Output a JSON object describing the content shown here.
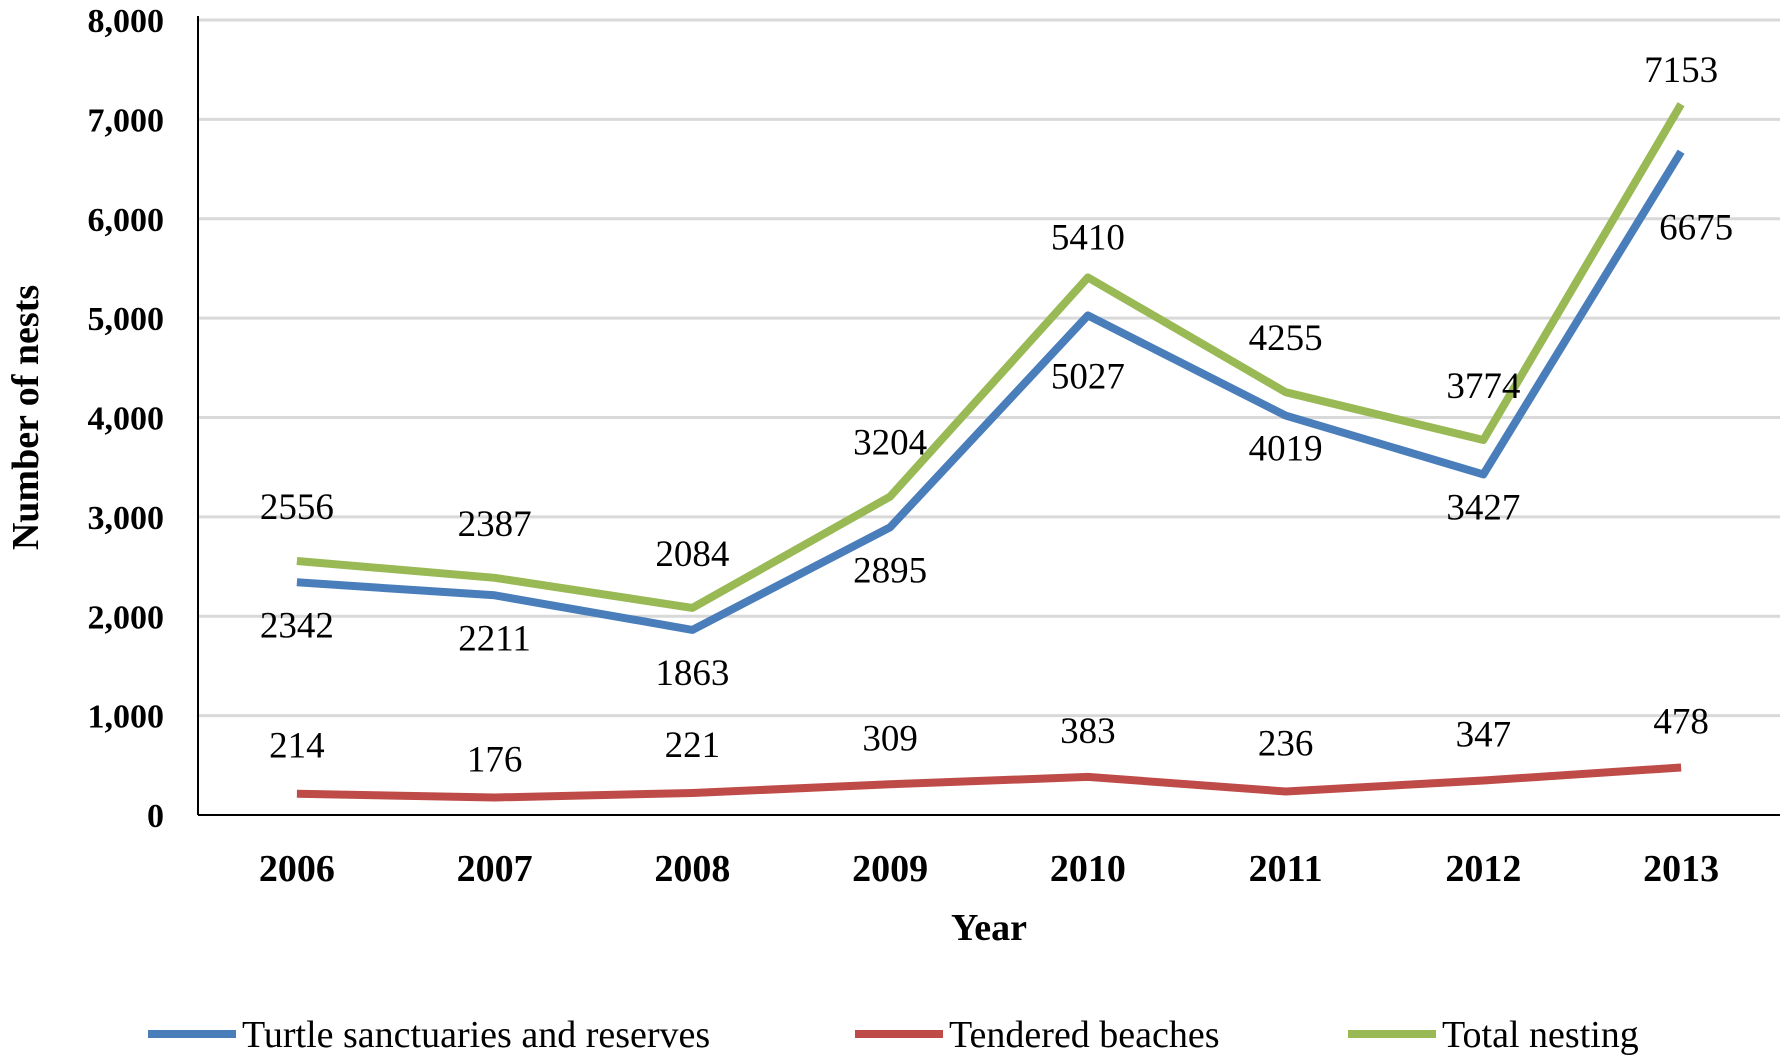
{
  "chart_data": {
    "type": "line",
    "title": "",
    "xlabel": "Year",
    "ylabel": "Number of nests",
    "ylim": [
      0,
      8000
    ],
    "yticks": [
      0,
      1000,
      2000,
      3000,
      4000,
      5000,
      6000,
      7000,
      8000
    ],
    "ytick_labels": [
      "0",
      "1,000",
      "2,000",
      "3,000",
      "4,000",
      "5,000",
      "6,000",
      "7,000",
      "8,000"
    ],
    "categories": [
      "2006",
      "2007",
      "2008",
      "2009",
      "2010",
      "2011",
      "2012",
      "2013"
    ],
    "grid": true,
    "legend_position": "bottom",
    "series": [
      {
        "name": "Turtle sanctuaries and reserves",
        "color": "#4a7ebb",
        "values": [
          2342,
          2211,
          1863,
          2895,
          5027,
          4019,
          3427,
          6675
        ],
        "labels": [
          "2342",
          "2211",
          "1863",
          "2895",
          "5027",
          "4019",
          "3427",
          "6675"
        ]
      },
      {
        "name": "Tendered beaches",
        "color": "#be4b48",
        "values": [
          214,
          176,
          221,
          309,
          383,
          236,
          347,
          478
        ],
        "labels": [
          "214",
          "176",
          "221",
          "309",
          "383",
          "236",
          "347",
          "478"
        ]
      },
      {
        "name": "Total nesting",
        "color": "#98b954",
        "values": [
          2556,
          2387,
          2084,
          3204,
          5410,
          4255,
          3774,
          7153
        ],
        "labels": [
          "2556",
          "2387",
          "2084",
          "3204",
          "5410",
          "4255",
          "3774",
          "7153"
        ]
      }
    ]
  }
}
